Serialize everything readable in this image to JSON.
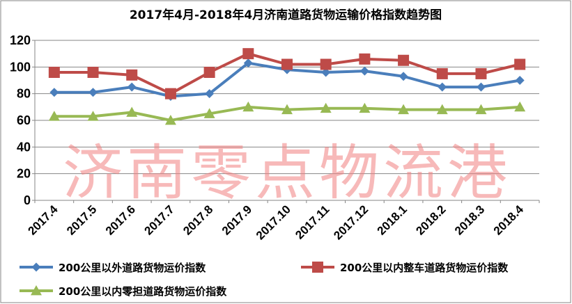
{
  "watermark": "济南零点物流港",
  "colors": {
    "grid": "#868686",
    "axis": "#868686",
    "border": "#868686"
  },
  "chart_data": {
    "type": "line",
    "title": "2017年4月-2018年4月济南道路货物运输价格指数趋势图",
    "xlabel": "",
    "ylabel": "",
    "ylim": [
      0,
      120
    ],
    "yticks": [
      0,
      20,
      40,
      60,
      80,
      100,
      120
    ],
    "grid": true,
    "legend_position": "bottom",
    "categories": [
      "2017.4",
      "2017.5",
      "2017.6",
      "2017.7",
      "2017.8",
      "2017.9",
      "2017.10",
      "2017.11",
      "2017.12",
      "2018.1",
      "2018.2",
      "2018.3",
      "2018.4"
    ],
    "series": [
      {
        "name": "200公里以外道路货物运价指数",
        "color": "#4a7ebb",
        "marker": "diamond",
        "values": [
          81,
          81,
          85,
          78,
          80,
          103,
          98,
          96,
          97,
          93,
          85,
          85,
          90
        ]
      },
      {
        "name": "200公里以内整车道路货物运价指数",
        "color": "#be4b48",
        "marker": "square",
        "values": [
          96,
          96,
          94,
          80,
          96,
          110,
          102,
          102,
          106,
          105,
          95,
          95,
          102
        ]
      },
      {
        "name": "200公里以内零担道路货物运价指数",
        "color": "#98b954",
        "marker": "triangle",
        "values": [
          63,
          63,
          66,
          60,
          65,
          70,
          68,
          69,
          69,
          68,
          68,
          68,
          70
        ]
      }
    ]
  }
}
